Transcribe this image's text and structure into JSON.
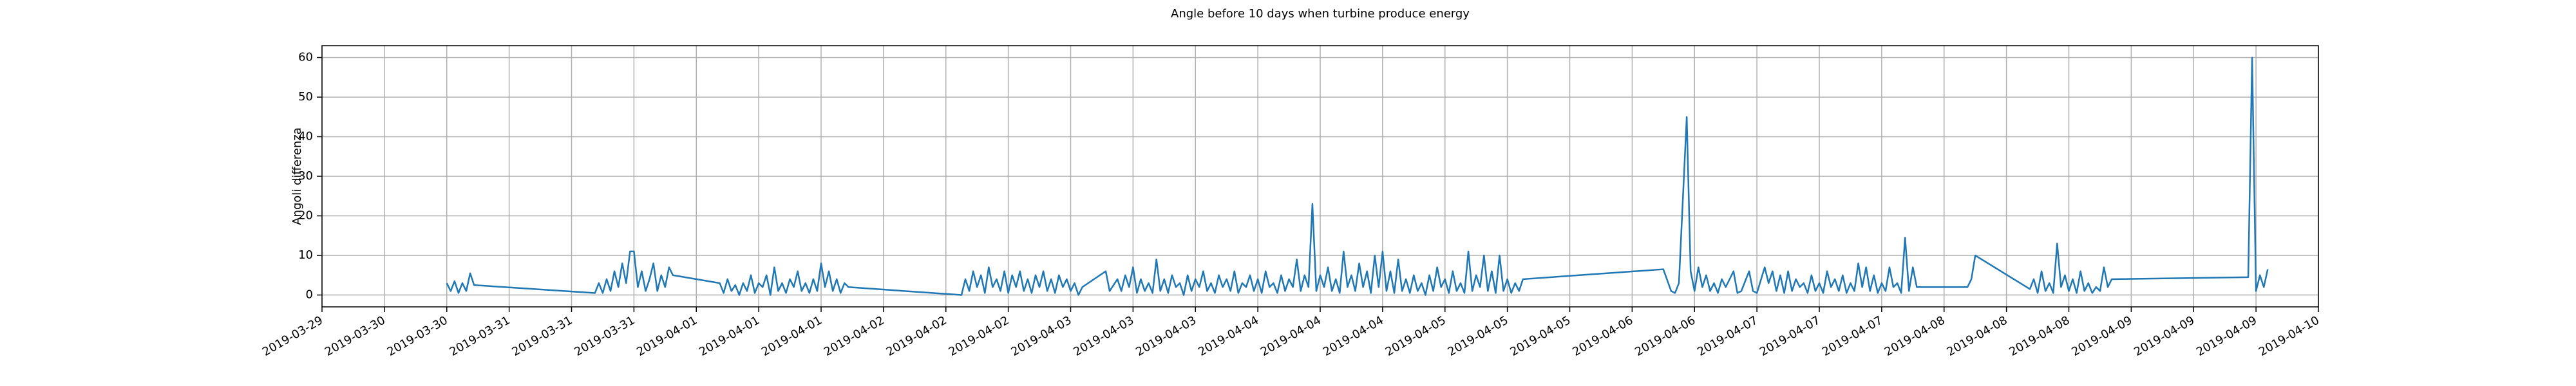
{
  "chart_data": {
    "type": "line",
    "title": "Angle before 10 days when turbine produce energy",
    "ylabel": "Angoli differenza",
    "color": "#1f77b4",
    "grid": true,
    "xlim": [
      0,
      256
    ],
    "ylim": [
      -3,
      63
    ],
    "yticks": [
      0,
      10,
      20,
      30,
      40,
      50,
      60
    ],
    "xticks": [
      {
        "value": 0,
        "label": "2019-03-29"
      },
      {
        "value": 8,
        "label": "2019-03-30"
      },
      {
        "value": 16,
        "label": "2019-03-30"
      },
      {
        "value": 24,
        "label": "2019-03-31"
      },
      {
        "value": 32,
        "label": "2019-03-31"
      },
      {
        "value": 40,
        "label": "2019-03-31"
      },
      {
        "value": 48,
        "label": "2019-04-01"
      },
      {
        "value": 56,
        "label": "2019-04-01"
      },
      {
        "value": 64,
        "label": "2019-04-01"
      },
      {
        "value": 72,
        "label": "2019-04-02"
      },
      {
        "value": 80,
        "label": "2019-04-02"
      },
      {
        "value": 88,
        "label": "2019-04-02"
      },
      {
        "value": 96,
        "label": "2019-04-03"
      },
      {
        "value": 104,
        "label": "2019-04-03"
      },
      {
        "value": 112,
        "label": "2019-04-03"
      },
      {
        "value": 120,
        "label": "2019-04-04"
      },
      {
        "value": 128,
        "label": "2019-04-04"
      },
      {
        "value": 136,
        "label": "2019-04-04"
      },
      {
        "value": 144,
        "label": "2019-04-05"
      },
      {
        "value": 152,
        "label": "2019-04-05"
      },
      {
        "value": 160,
        "label": "2019-04-05"
      },
      {
        "value": 168,
        "label": "2019-04-06"
      },
      {
        "value": 176,
        "label": "2019-04-06"
      },
      {
        "value": 184,
        "label": "2019-04-07"
      },
      {
        "value": 192,
        "label": "2019-04-07"
      },
      {
        "value": 200,
        "label": "2019-04-07"
      },
      {
        "value": 208,
        "label": "2019-04-08"
      },
      {
        "value": 216,
        "label": "2019-04-08"
      },
      {
        "value": 224,
        "label": "2019-04-08"
      },
      {
        "value": 232,
        "label": "2019-04-09"
      },
      {
        "value": 240,
        "label": "2019-04-09"
      },
      {
        "value": 248,
        "label": "2019-04-09"
      },
      {
        "value": 256,
        "label": "2019-04-10"
      }
    ],
    "x": [
      16,
      16.5,
      17,
      17.5,
      18,
      18.5,
      19,
      19.5,
      35,
      35.5,
      36,
      36.5,
      37,
      37.5,
      38,
      38.5,
      39,
      39.5,
      40,
      40.5,
      41,
      41.5,
      42,
      42.5,
      43,
      43.5,
      44,
      44.5,
      45,
      51,
      51.5,
      52,
      52.5,
      53,
      53.5,
      54,
      54.5,
      55,
      55.5,
      56,
      56.5,
      57,
      57.5,
      58,
      58.5,
      59,
      59.5,
      60,
      60.5,
      61,
      61.5,
      62,
      62.5,
      63,
      63.5,
      64,
      64.5,
      65,
      65.5,
      66,
      66.5,
      67,
      67.5,
      82,
      82.5,
      83,
      83.5,
      84,
      84.5,
      85,
      85.5,
      86,
      86.5,
      87,
      87.5,
      88,
      88.5,
      89,
      89.5,
      90,
      90.5,
      91,
      91.5,
      92,
      92.5,
      93,
      93.5,
      94,
      94.5,
      95,
      95.5,
      96,
      96.5,
      97,
      97.5,
      100.5,
      101,
      102,
      102.5,
      103,
      103.5,
      104,
      104.5,
      105,
      105.5,
      106,
      106.5,
      107,
      107.5,
      108,
      108.5,
      109,
      109.5,
      110,
      110.5,
      111,
      111.5,
      112,
      112.5,
      113,
      113.5,
      114,
      114.5,
      115,
      115.5,
      116,
      116.5,
      117,
      117.5,
      118,
      118.5,
      119,
      119.5,
      120,
      120.5,
      121,
      121.5,
      122,
      122.5,
      123,
      123.5,
      124,
      124.5,
      125,
      125.5,
      126,
      126.5,
      127,
      127.5,
      128,
      128.5,
      129,
      129.5,
      130,
      130.5,
      131,
      131.5,
      132,
      132.5,
      133,
      133.5,
      134,
      134.5,
      135,
      135.5,
      136,
      136.5,
      137,
      137.5,
      138,
      138.5,
      139,
      139.5,
      140,
      140.5,
      141,
      141.5,
      142,
      142.5,
      143,
      143.5,
      144,
      144.5,
      145,
      145.5,
      146,
      146.5,
      147,
      147.5,
      148,
      148.5,
      149,
      149.5,
      150,
      150.5,
      151,
      151.5,
      152,
      152.5,
      153,
      153.5,
      154,
      172,
      173,
      173.5,
      174,
      175,
      175.5,
      176,
      176.5,
      177,
      177.5,
      178,
      178.5,
      179,
      179.5,
      180,
      181,
      181.5,
      182,
      183,
      183.5,
      184,
      185,
      185.5,
      186,
      186.5,
      187,
      187.5,
      188,
      188.5,
      189,
      189.5,
      190,
      190.5,
      191,
      191.5,
      192,
      192.5,
      193,
      193.5,
      194,
      194.5,
      195,
      195.5,
      196,
      196.5,
      197,
      197.5,
      198,
      198.5,
      199,
      199.5,
      200,
      200.5,
      201,
      201.5,
      202,
      202.5,
      203,
      203.5,
      204,
      204.5,
      210,
      211,
      211.5,
      212,
      219,
      219.5,
      220,
      220.5,
      221,
      221.5,
      222,
      222.5,
      223,
      223.5,
      224,
      224.5,
      225,
      225.5,
      226,
      226.5,
      227,
      227.5,
      228,
      228.5,
      229,
      229.5,
      247,
      247.5,
      248,
      248.5,
      249,
      249.5
    ],
    "values": [
      3,
      1,
      3.5,
      0.5,
      3,
      1,
      5.5,
      2.5,
      0.5,
      3,
      0.5,
      4,
      1,
      6,
      2,
      8,
      3,
      11,
      11,
      2,
      6,
      1,
      4,
      8,
      1,
      5,
      2,
      7,
      5,
      3,
      0.5,
      4,
      1,
      2.5,
      0,
      3,
      1,
      5,
      0.5,
      3,
      2,
      5,
      0,
      7,
      1,
      3,
      0.5,
      4,
      2,
      6,
      1,
      3,
      0.5,
      4,
      1,
      8,
      2,
      6,
      1,
      4,
      0.5,
      3,
      2,
      0,
      4,
      1,
      6,
      2,
      5,
      0.5,
      7,
      2,
      4,
      1,
      6,
      0.5,
      5,
      2,
      6,
      1,
      4,
      0.5,
      5,
      2,
      6,
      1,
      4,
      0.5,
      5,
      2,
      4,
      1,
      3,
      0,
      2,
      6,
      1,
      4,
      1,
      5,
      2,
      7,
      0.5,
      4,
      1,
      3,
      0.5,
      9,
      1,
      4,
      0.5,
      5,
      2,
      3,
      0,
      5,
      1,
      4,
      2,
      6,
      1,
      3,
      0.5,
      5,
      2,
      4,
      1,
      6,
      0.5,
      3,
      2,
      5,
      1,
      4,
      0.5,
      6,
      2,
      3,
      0.5,
      5,
      1,
      4,
      2,
      9,
      1,
      5,
      2,
      23,
      1,
      5,
      2,
      7,
      1,
      4,
      0.5,
      11,
      2,
      5,
      1,
      8,
      2,
      6,
      0.5,
      10,
      2,
      11,
      1,
      6,
      0.5,
      9,
      1,
      4,
      0.5,
      5,
      1,
      3,
      0,
      5,
      1,
      7,
      2,
      4,
      0.5,
      6,
      1,
      3,
      0.5,
      11,
      1,
      5,
      2,
      10,
      1,
      6,
      0.5,
      10,
      1,
      4,
      0.5,
      3,
      1,
      4,
      6.5,
      1,
      0.5,
      3,
      45,
      6,
      1,
      7,
      2,
      5,
      1,
      3,
      0.5,
      4,
      2,
      6,
      0.5,
      1,
      6,
      1,
      0.5,
      7,
      3,
      6,
      1,
      5,
      0.5,
      6,
      1,
      4,
      2,
      3,
      0.5,
      5,
      1,
      3,
      0.5,
      6,
      2,
      4,
      1,
      5,
      0.5,
      3,
      1,
      8,
      2,
      7,
      1,
      5,
      0.5,
      3,
      1,
      7,
      2,
      3,
      0.5,
      14.5,
      1,
      7,
      2,
      2,
      2,
      4,
      10,
      1.5,
      4,
      0.5,
      6,
      1,
      3,
      0.5,
      13,
      2,
      5,
      1,
      4,
      0.5,
      6,
      1,
      3,
      0.5,
      2,
      1,
      7,
      2,
      4,
      4.5,
      60,
      1,
      5,
      2,
      6.5
    ]
  }
}
